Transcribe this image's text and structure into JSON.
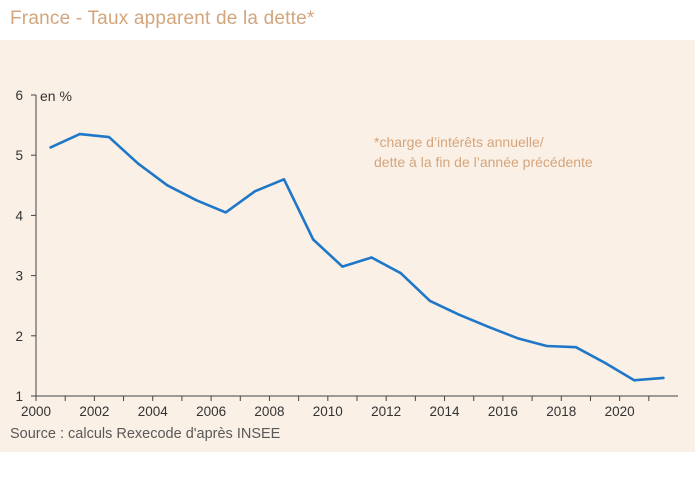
{
  "title": "France - Taux apparent de la dette*",
  "source": "Source : calculs Rexecode d'après INSEE",
  "note_lines": [
    "*charge d’intérêts annuelle/",
    "dette à la fin de l’année précédente"
  ],
  "colors": {
    "line": "#1f77c8",
    "title": "#d4a57c",
    "background": "#faf0e6",
    "axis": "#444444"
  },
  "chart_data": {
    "type": "line",
    "title": "France - Taux apparent de la dette*",
    "ylabel": "en %",
    "xlabel": "",
    "xlim": [
      2000,
      2022
    ],
    "ylim": [
      1,
      6
    ],
    "xticks": [
      "2000",
      "2002",
      "2004",
      "2006",
      "2008",
      "2010",
      "2012",
      "2014",
      "2016",
      "2018",
      "2020"
    ],
    "yticks": [
      "1",
      "2",
      "3",
      "4",
      "5",
      "6"
    ],
    "grid": false,
    "series": [
      {
        "x": [
          2000.5,
          2001.5,
          2002.5,
          2003.5,
          2004.5,
          2005.5,
          2006.5,
          2007.5,
          2008.5,
          2009.5,
          2010.5,
          2011.5,
          2012.5,
          2013.5,
          2014.5,
          2015.5,
          2016.5,
          2017.5,
          2018.5,
          2019.5,
          2020.5,
          2021.5
        ],
        "values": [
          5.13,
          5.35,
          5.3,
          4.86,
          4.5,
          4.25,
          4.05,
          4.4,
          4.6,
          3.6,
          3.15,
          3.3,
          3.04,
          2.58,
          2.35,
          2.15,
          1.96,
          1.83,
          1.81,
          1.55,
          1.26,
          1.3
        ]
      }
    ]
  }
}
